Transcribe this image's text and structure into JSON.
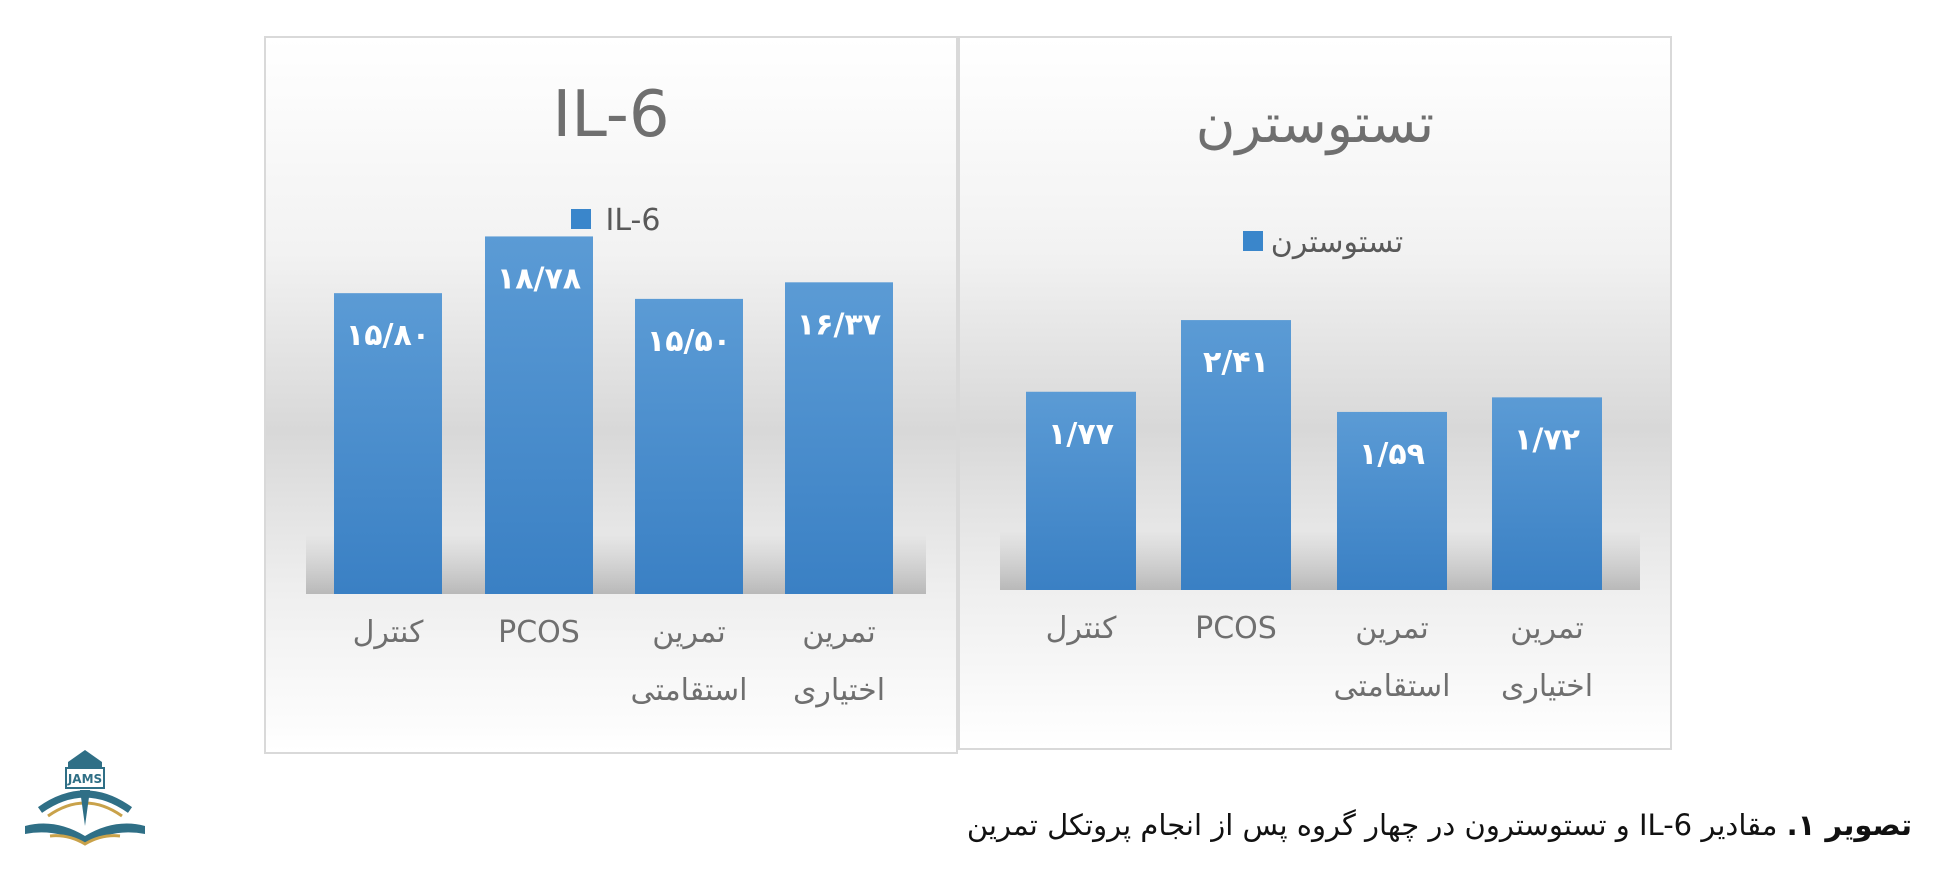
{
  "chart_data": [
    {
      "type": "bar",
      "title": "IL-6",
      "legend": [
        "IL-6"
      ],
      "legend_position": "top",
      "categories": [
        "کنترل",
        "PCOS",
        "تمرین استقامتی",
        "تمرین اختیاری"
      ],
      "series": [
        {
          "name": "IL-6",
          "values": [
            15.8,
            18.78,
            15.5,
            16.37
          ]
        }
      ],
      "data_labels": [
        "۱۵/۸۰",
        "۱۸/۷۸",
        "۱۵/۵۰",
        "۱۶/۳۷"
      ],
      "ylim": [
        0,
        25
      ],
      "grid": false,
      "bar_color": "#3a86cb"
    },
    {
      "type": "bar",
      "title": "تستوسترن",
      "legend": [
        "تستوسترن"
      ],
      "legend_position": "top",
      "categories": [
        "کنترل",
        "PCOS",
        "تمرین استقامتی",
        "تمرین اختیاری"
      ],
      "series": [
        {
          "name": "تستوسترن",
          "values": [
            1.77,
            2.41,
            1.59,
            1.72
          ]
        }
      ],
      "data_labels": [
        "۱/۷۷",
        "۲/۴۱",
        "۱/۵۹",
        "۱/۷۲"
      ],
      "ylim": [
        0,
        4
      ],
      "grid": false,
      "bar_color": "#3a86cb"
    }
  ],
  "caption": {
    "prefix": "تصویر ۱.",
    "text": "مقادیر IL-6 و تستوسترون در چهار گروه پس از انجام پروتکل تمرین"
  },
  "logo": {
    "text": "JAMS",
    "icon": "journal-logo-icon"
  }
}
